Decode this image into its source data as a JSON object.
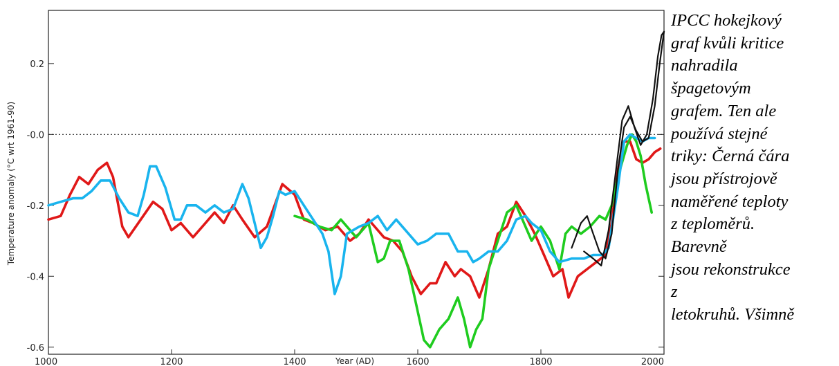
{
  "caption": {
    "lines": [
      "IPCC hokejkový",
      "graf kvůli kritice",
      "nahradila",
      "špagetovým",
      "grafem. Ten ale",
      "používá stejné",
      "triky: Černá čára",
      "jsou přístrojově",
      "naměřené teploty",
      "z teploměrů.",
      "Barevně",
      "jsou rekonstrukce",
      "z",
      "letokruhů. Všimně"
    ]
  },
  "chart_data": {
    "type": "line",
    "title": "",
    "xlabel": "Year (AD)",
    "ylabel": "Temperature anomaly (°C wrt 1961-90)",
    "xlim": [
      1000,
      2000
    ],
    "ylim": [
      -0.62,
      0.35
    ],
    "x_ticks": [
      1000,
      1200,
      1400,
      1600,
      1800,
      2000
    ],
    "x_tick_labels": [
      "1000",
      "1200",
      "1400",
      "1600",
      "1800",
      "2000"
    ],
    "y_ticks": [
      0.2,
      0.0,
      -0.2,
      -0.4,
      -0.6
    ],
    "y_tick_labels": [
      "0.2",
      "-0.0",
      "-0.2",
      "-0.4",
      "-0.6"
    ],
    "zero_line": 0.0,
    "series": [
      {
        "color": "#e01818",
        "points": [
          [
            1000,
            -0.24
          ],
          [
            1020,
            -0.23
          ],
          [
            1035,
            -0.17
          ],
          [
            1050,
            -0.12
          ],
          [
            1065,
            -0.14
          ],
          [
            1080,
            -0.1
          ],
          [
            1095,
            -0.08
          ],
          [
            1105,
            -0.12
          ],
          [
            1120,
            -0.26
          ],
          [
            1130,
            -0.29
          ],
          [
            1150,
            -0.24
          ],
          [
            1170,
            -0.19
          ],
          [
            1185,
            -0.21
          ],
          [
            1200,
            -0.27
          ],
          [
            1215,
            -0.25
          ],
          [
            1235,
            -0.29
          ],
          [
            1255,
            -0.25
          ],
          [
            1270,
            -0.22
          ],
          [
            1285,
            -0.25
          ],
          [
            1300,
            -0.2
          ],
          [
            1315,
            -0.24
          ],
          [
            1335,
            -0.29
          ],
          [
            1355,
            -0.26
          ],
          [
            1380,
            -0.14
          ],
          [
            1400,
            -0.17
          ],
          [
            1415,
            -0.24
          ],
          [
            1430,
            -0.25
          ],
          [
            1450,
            -0.27
          ],
          [
            1470,
            -0.26
          ],
          [
            1490,
            -0.3
          ],
          [
            1505,
            -0.28
          ],
          [
            1520,
            -0.24
          ],
          [
            1530,
            -0.26
          ],
          [
            1545,
            -0.29
          ],
          [
            1560,
            -0.3
          ],
          [
            1575,
            -0.33
          ],
          [
            1590,
            -0.4
          ],
          [
            1605,
            -0.45
          ],
          [
            1620,
            -0.42
          ],
          [
            1630,
            -0.42
          ],
          [
            1645,
            -0.36
          ],
          [
            1660,
            -0.4
          ],
          [
            1670,
            -0.38
          ],
          [
            1685,
            -0.4
          ],
          [
            1700,
            -0.46
          ],
          [
            1715,
            -0.38
          ],
          [
            1730,
            -0.28
          ],
          [
            1745,
            -0.26
          ],
          [
            1760,
            -0.19
          ],
          [
            1775,
            -0.23
          ],
          [
            1790,
            -0.28
          ],
          [
            1805,
            -0.34
          ],
          [
            1820,
            -0.4
          ],
          [
            1835,
            -0.38
          ],
          [
            1845,
            -0.46
          ],
          [
            1860,
            -0.4
          ],
          [
            1875,
            -0.38
          ],
          [
            1890,
            -0.36
          ],
          [
            1905,
            -0.34
          ],
          [
            1915,
            -0.25
          ],
          [
            1925,
            -0.1
          ],
          [
            1935,
            -0.02
          ],
          [
            1945,
            -0.02
          ],
          [
            1955,
            -0.07
          ],
          [
            1965,
            -0.08
          ],
          [
            1975,
            -0.07
          ],
          [
            1985,
            -0.05
          ],
          [
            1994,
            -0.04
          ]
        ]
      },
      {
        "color": "#1fcc1f",
        "points": [
          [
            1400,
            -0.23
          ],
          [
            1420,
            -0.24
          ],
          [
            1440,
            -0.26
          ],
          [
            1460,
            -0.27
          ],
          [
            1475,
            -0.24
          ],
          [
            1490,
            -0.27
          ],
          [
            1500,
            -0.29
          ],
          [
            1510,
            -0.27
          ],
          [
            1520,
            -0.25
          ],
          [
            1535,
            -0.36
          ],
          [
            1545,
            -0.35
          ],
          [
            1555,
            -0.3
          ],
          [
            1570,
            -0.3
          ],
          [
            1585,
            -0.38
          ],
          [
            1600,
            -0.5
          ],
          [
            1610,
            -0.58
          ],
          [
            1620,
            -0.6
          ],
          [
            1635,
            -0.55
          ],
          [
            1650,
            -0.52
          ],
          [
            1665,
            -0.46
          ],
          [
            1675,
            -0.52
          ],
          [
            1685,
            -0.6
          ],
          [
            1695,
            -0.55
          ],
          [
            1705,
            -0.52
          ],
          [
            1715,
            -0.38
          ],
          [
            1730,
            -0.3
          ],
          [
            1745,
            -0.22
          ],
          [
            1760,
            -0.2
          ],
          [
            1770,
            -0.24
          ],
          [
            1785,
            -0.3
          ],
          [
            1800,
            -0.26
          ],
          [
            1815,
            -0.3
          ],
          [
            1830,
            -0.38
          ],
          [
            1840,
            -0.28
          ],
          [
            1850,
            -0.26
          ],
          [
            1865,
            -0.28
          ],
          [
            1880,
            -0.26
          ],
          [
            1895,
            -0.23
          ],
          [
            1905,
            -0.24
          ],
          [
            1915,
            -0.2
          ],
          [
            1925,
            -0.12
          ],
          [
            1940,
            -0.03
          ],
          [
            1948,
            0.0
          ],
          [
            1955,
            -0.02
          ],
          [
            1962,
            -0.06
          ],
          [
            1970,
            -0.14
          ],
          [
            1980,
            -0.22
          ]
        ]
      },
      {
        "color": "#19b4ee",
        "points": [
          [
            1000,
            -0.2
          ],
          [
            1020,
            -0.19
          ],
          [
            1040,
            -0.18
          ],
          [
            1055,
            -0.18
          ],
          [
            1070,
            -0.16
          ],
          [
            1085,
            -0.13
          ],
          [
            1100,
            -0.13
          ],
          [
            1115,
            -0.18
          ],
          [
            1130,
            -0.22
          ],
          [
            1145,
            -0.23
          ],
          [
            1155,
            -0.17
          ],
          [
            1165,
            -0.09
          ],
          [
            1175,
            -0.09
          ],
          [
            1190,
            -0.15
          ],
          [
            1205,
            -0.24
          ],
          [
            1215,
            -0.24
          ],
          [
            1225,
            -0.2
          ],
          [
            1240,
            -0.2
          ],
          [
            1255,
            -0.22
          ],
          [
            1270,
            -0.2
          ],
          [
            1285,
            -0.22
          ],
          [
            1300,
            -0.21
          ],
          [
            1315,
            -0.14
          ],
          [
            1325,
            -0.18
          ],
          [
            1335,
            -0.25
          ],
          [
            1345,
            -0.32
          ],
          [
            1355,
            -0.29
          ],
          [
            1365,
            -0.23
          ],
          [
            1375,
            -0.16
          ],
          [
            1385,
            -0.17
          ],
          [
            1400,
            -0.16
          ],
          [
            1415,
            -0.2
          ],
          [
            1430,
            -0.24
          ],
          [
            1445,
            -0.28
          ],
          [
            1455,
            -0.33
          ],
          [
            1465,
            -0.45
          ],
          [
            1475,
            -0.4
          ],
          [
            1485,
            -0.28
          ],
          [
            1495,
            -0.27
          ],
          [
            1505,
            -0.26
          ],
          [
            1520,
            -0.25
          ],
          [
            1535,
            -0.23
          ],
          [
            1550,
            -0.27
          ],
          [
            1565,
            -0.24
          ],
          [
            1580,
            -0.27
          ],
          [
            1600,
            -0.31
          ],
          [
            1615,
            -0.3
          ],
          [
            1630,
            -0.28
          ],
          [
            1650,
            -0.28
          ],
          [
            1665,
            -0.33
          ],
          [
            1680,
            -0.33
          ],
          [
            1690,
            -0.36
          ],
          [
            1700,
            -0.35
          ],
          [
            1715,
            -0.33
          ],
          [
            1730,
            -0.33
          ],
          [
            1745,
            -0.3
          ],
          [
            1760,
            -0.24
          ],
          [
            1775,
            -0.23
          ],
          [
            1785,
            -0.25
          ],
          [
            1800,
            -0.27
          ],
          [
            1815,
            -0.33
          ],
          [
            1830,
            -0.36
          ],
          [
            1850,
            -0.35
          ],
          [
            1870,
            -0.35
          ],
          [
            1885,
            -0.34
          ],
          [
            1900,
            -0.34
          ],
          [
            1910,
            -0.32
          ],
          [
            1925,
            -0.15
          ],
          [
            1935,
            -0.02
          ],
          [
            1945,
            0.0
          ],
          [
            1955,
            -0.01
          ],
          [
            1965,
            -0.02
          ],
          [
            1975,
            -0.01
          ],
          [
            1985,
            -0.01
          ]
        ]
      },
      {
        "color": "#111111",
        "points": [
          [
            1850,
            -0.32
          ],
          [
            1865,
            -0.25
          ],
          [
            1875,
            -0.23
          ],
          [
            1885,
            -0.28
          ],
          [
            1895,
            -0.33
          ],
          [
            1905,
            -0.35
          ],
          [
            1915,
            -0.28
          ],
          [
            1925,
            -0.1
          ],
          [
            1935,
            0.02
          ],
          [
            1945,
            0.05
          ],
          [
            1955,
            0.01
          ],
          [
            1965,
            -0.02
          ],
          [
            1975,
            -0.01
          ],
          [
            1985,
            0.08
          ],
          [
            1993,
            0.2
          ],
          [
            2000,
            0.29
          ]
        ]
      },
      {
        "color": "#111111",
        "points": [
          [
            1870,
            -0.33
          ],
          [
            1885,
            -0.35
          ],
          [
            1898,
            -0.37
          ],
          [
            1910,
            -0.27
          ],
          [
            1922,
            -0.1
          ],
          [
            1932,
            0.04
          ],
          [
            1942,
            0.08
          ],
          [
            1952,
            0.02
          ],
          [
            1962,
            -0.03
          ],
          [
            1972,
            0.0
          ],
          [
            1982,
            0.1
          ],
          [
            1990,
            0.22
          ],
          [
            1996,
            0.28
          ],
          [
            2000,
            0.29
          ]
        ]
      }
    ]
  }
}
